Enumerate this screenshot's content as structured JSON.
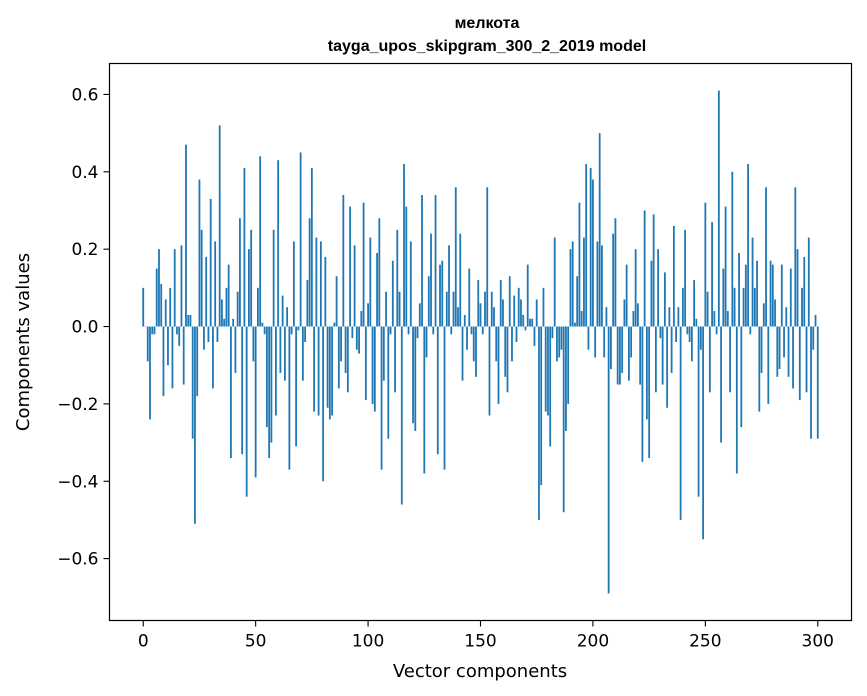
{
  "chart_data": {
    "type": "bar",
    "title": "мелкота",
    "subtitle": "tayga_upos_skipgram_300_2_2019 model",
    "xlabel": "Vector components",
    "ylabel": "Components values",
    "xlim": [
      -15,
      315
    ],
    "ylim": [
      -0.76,
      0.68
    ],
    "xticks": [
      0,
      50,
      100,
      150,
      200,
      250,
      300
    ],
    "yticks": [
      -0.6,
      -0.4,
      -0.2,
      0.0,
      0.2,
      0.4,
      0.6
    ],
    "ytick_labels": [
      "−0.6",
      "−0.4",
      "−0.2",
      "0.0",
      "0.2",
      "0.4",
      "0.6"
    ],
    "bar_color": "#1f77b4",
    "grid": false,
    "values": [
      0.1,
      0.0,
      -0.09,
      -0.24,
      -0.02,
      -0.02,
      0.15,
      0.2,
      0.11,
      -0.18,
      0.07,
      -0.1,
      0.1,
      -0.16,
      0.2,
      -0.02,
      -0.05,
      0.21,
      -0.15,
      0.47,
      0.03,
      0.03,
      -0.29,
      -0.51,
      -0.18,
      0.38,
      0.25,
      -0.06,
      0.18,
      -0.04,
      0.33,
      -0.16,
      0.22,
      -0.04,
      0.52,
      0.07,
      0.02,
      0.1,
      0.16,
      -0.34,
      0.02,
      -0.12,
      0.09,
      0.28,
      -0.33,
      0.41,
      -0.44,
      0.2,
      0.25,
      -0.09,
      -0.39,
      0.1,
      0.44,
      0.01,
      -0.02,
      -0.26,
      -0.34,
      -0.3,
      0.25,
      -0.23,
      0.43,
      -0.12,
      0.08,
      -0.14,
      0.05,
      -0.37,
      -0.02,
      0.22,
      -0.31,
      -0.01,
      0.45,
      -0.14,
      -0.04,
      0.12,
      0.28,
      0.41,
      -0.22,
      0.23,
      -0.23,
      0.22,
      -0.4,
      0.18,
      -0.21,
      -0.24,
      -0.23,
      0.01,
      0.13,
      -0.16,
      -0.09,
      0.34,
      -0.12,
      -0.17,
      0.31,
      -0.03,
      0.21,
      -0.06,
      -0.07,
      0.04,
      0.32,
      -0.19,
      0.06,
      0.23,
      -0.2,
      -0.22,
      0.19,
      0.28,
      -0.37,
      -0.14,
      0.09,
      -0.29,
      -0.02,
      0.17,
      -0.17,
      0.25,
      0.09,
      -0.46,
      0.42,
      0.31,
      -0.02,
      0.22,
      -0.25,
      -0.27,
      -0.03,
      0.06,
      0.34,
      -0.38,
      -0.08,
      0.13,
      0.24,
      -0.02,
      0.34,
      -0.33,
      0.16,
      0.17,
      -0.37,
      0.09,
      0.21,
      -0.02,
      0.09,
      0.36,
      0.05,
      0.24,
      -0.14,
      0.03,
      -0.06,
      0.15,
      -0.02,
      -0.09,
      -0.13,
      0.12,
      0.06,
      -0.02,
      0.09,
      0.36,
      -0.23,
      0.09,
      0.05,
      -0.09,
      -0.2,
      0.12,
      0.07,
      -0.13,
      -0.17,
      0.13,
      -0.09,
      0.08,
      -0.04,
      0.1,
      0.07,
      0.03,
      -0.01,
      0.16,
      0.02,
      0.02,
      -0.05,
      0.07,
      -0.5,
      -0.41,
      0.1,
      -0.22,
      -0.23,
      -0.31,
      -0.03,
      0.23,
      -0.09,
      -0.08,
      -0.06,
      -0.48,
      -0.27,
      -0.2,
      0.2,
      0.22,
      0.01,
      0.13,
      0.32,
      0.04,
      0.23,
      0.42,
      -0.06,
      0.41,
      0.38,
      -0.08,
      0.22,
      0.5,
      0.21,
      -0.08,
      0.05,
      -0.69,
      -0.11,
      0.24,
      0.28,
      -0.15,
      -0.15,
      -0.12,
      0.07,
      0.16,
      -0.14,
      -0.08,
      0.04,
      0.2,
      0.06,
      -0.15,
      -0.35,
      0.3,
      -0.24,
      -0.34,
      0.17,
      0.29,
      -0.17,
      0.2,
      -0.03,
      -0.15,
      0.14,
      -0.21,
      0.05,
      -0.12,
      0.26,
      -0.04,
      0.05,
      -0.5,
      0.1,
      0.25,
      -0.02,
      -0.04,
      -0.09,
      0.12,
      0.02,
      -0.44,
      -0.06,
      -0.55,
      0.32,
      0.09,
      -0.17,
      0.27,
      0.04,
      -0.02,
      0.61,
      -0.3,
      0.15,
      0.31,
      0.04,
      -0.17,
      0.4,
      0.1,
      -0.38,
      0.19,
      -0.26,
      0.1,
      0.16,
      0.42,
      -0.02,
      0.23,
      0.1,
      0.17,
      -0.22,
      -0.12,
      0.06,
      0.36,
      -0.2,
      0.17,
      0.16,
      0.07,
      -0.13,
      -0.11,
      0.16,
      -0.08,
      0.05,
      -0.13,
      0.15,
      -0.16,
      0.36,
      0.2,
      -0.19,
      0.1,
      0.18,
      -0.17,
      0.23,
      -0.29,
      -0.06,
      0.03,
      -0.29
    ]
  }
}
